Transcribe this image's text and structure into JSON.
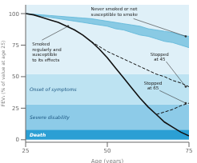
{
  "chart_data": {
    "type": "line",
    "xlabel": "Age (years)",
    "ylabel": "FEV₁ (% of value at age 25)",
    "xlim": [
      25,
      75
    ],
    "ylim": [
      -2,
      107
    ],
    "xticks": [
      25,
      50,
      75
    ],
    "yticks": [
      0,
      25,
      50,
      75,
      100
    ],
    "grid": false,
    "bands": [
      {
        "range": [
          0,
          8
        ],
        "color": "#2b9fd4",
        "label": "Death"
      },
      {
        "range": [
          8,
          28
        ],
        "color": "#8dcbe8",
        "label": "Severe disability"
      },
      {
        "range": [
          28,
          52
        ],
        "color": "#bde3f2",
        "label": "Onset of symptoms"
      },
      {
        "range": [
          52,
          107
        ],
        "color": "#dff0f8"
      }
    ],
    "x": [
      25,
      27.5,
      30,
      32.5,
      35,
      37.5,
      40,
      42.5,
      45,
      47.5,
      50,
      52.5,
      55,
      57.5,
      60,
      62.5,
      65,
      67.5,
      70,
      72.5,
      75
    ],
    "series": [
      {
        "type": "area",
        "label": "Never smoked or not\nsusceptible to smoke",
        "color": "#5ab5d8",
        "lower": [
          100,
          99,
          98,
          97,
          96,
          95,
          94,
          93,
          92,
          91,
          90,
          88,
          87,
          85,
          83,
          82,
          80,
          78,
          77,
          75,
          73
        ],
        "upper": [
          100,
          99.5,
          99,
          98.5,
          98,
          97.5,
          97,
          96.5,
          96,
          95,
          94,
          93,
          92,
          91,
          90,
          88,
          87,
          86,
          85,
          83,
          82
        ]
      },
      {
        "type": "line",
        "label": "Smoked\nregularly and\nsusceptible\nto its effects",
        "color": "#111111",
        "line_style": "solid",
        "values": [
          100,
          99,
          97,
          95,
          93,
          90,
          87,
          83,
          78,
          72,
          65,
          57,
          49,
          41,
          33,
          26,
          20,
          14,
          10,
          6,
          3
        ]
      },
      {
        "type": "line",
        "label": "Stopped\nat 45",
        "color": "#111111",
        "line_style": "dashed",
        "x": [
          45,
          47.5,
          50,
          52.5,
          55,
          57.5,
          60,
          62.5,
          65,
          67.5,
          70,
          72.5,
          75
        ],
        "values": [
          78,
          74,
          70,
          67,
          64,
          61,
          58,
          55,
          52,
          50,
          47,
          45,
          42
        ]
      },
      {
        "type": "line",
        "label": "Stopped\nat 65",
        "color": "#111111",
        "line_style": "dashed",
        "x": [
          65,
          67.5,
          70,
          72.5,
          75
        ],
        "values": [
          20,
          22,
          24,
          27,
          29
        ]
      }
    ]
  }
}
